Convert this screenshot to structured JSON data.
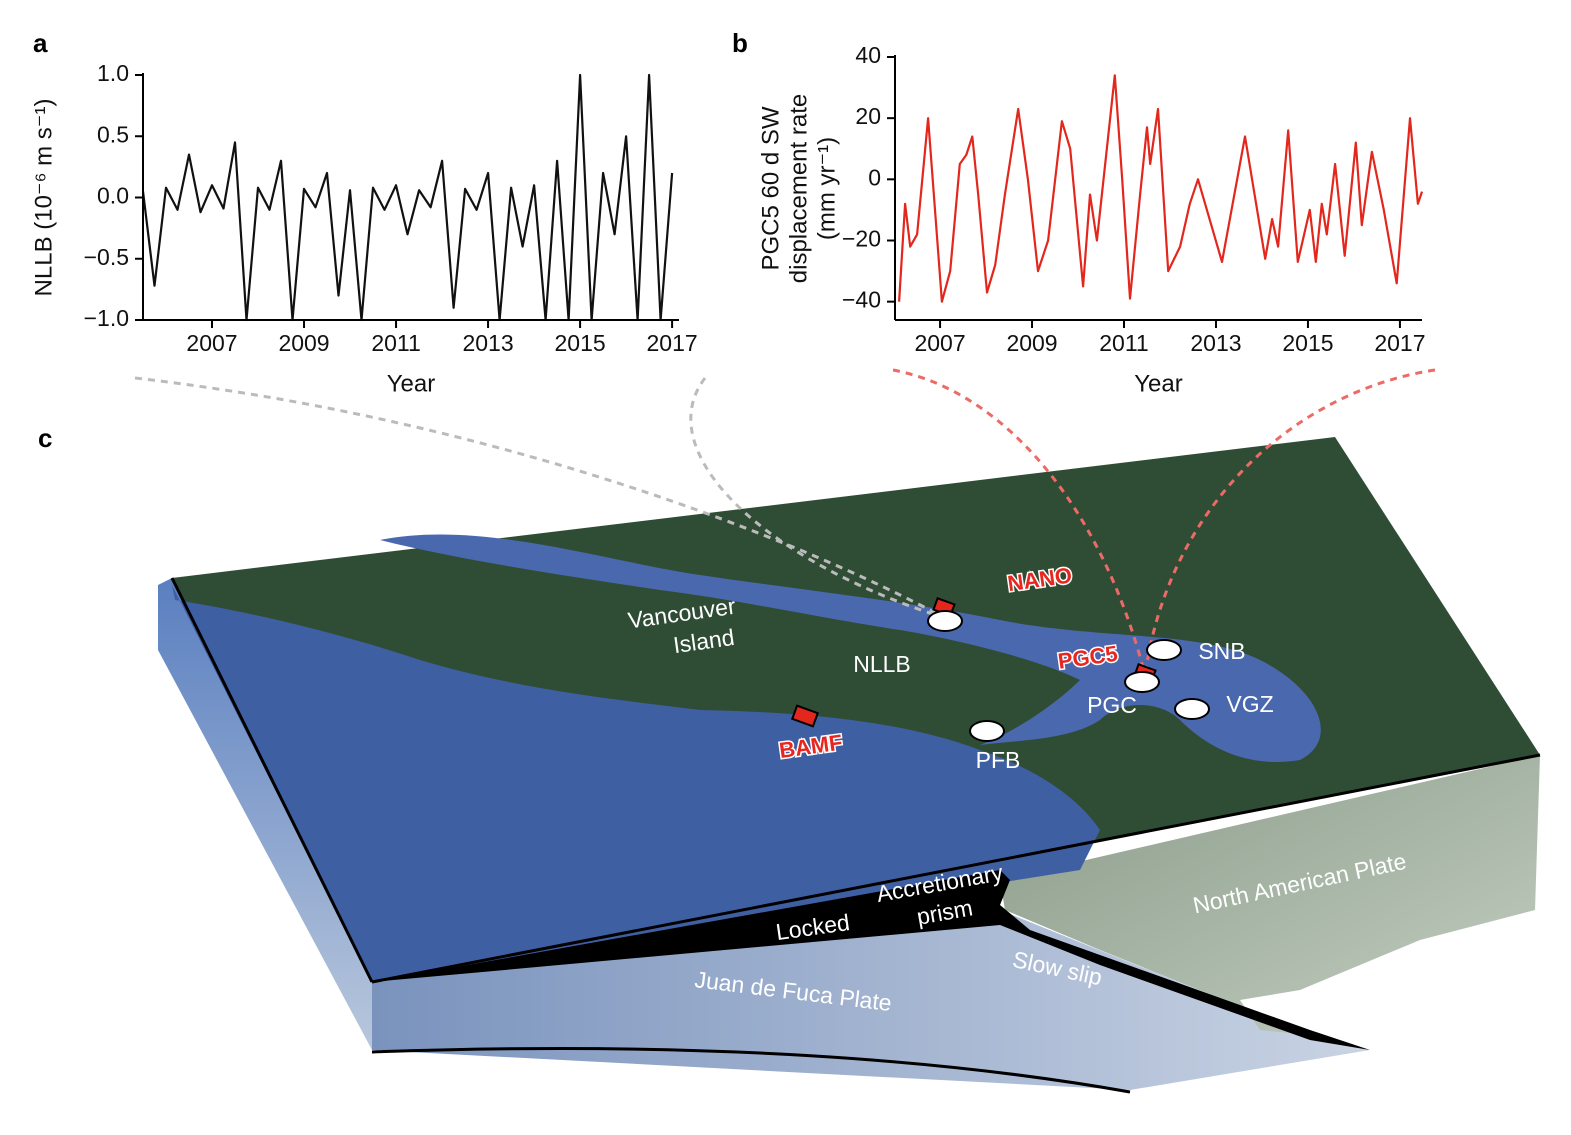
{
  "chart_data": [
    {
      "type": "line",
      "panel_label": "a",
      "ylabel": "NLLB (10⁻⁶ m s⁻¹)",
      "xlabel": "Year",
      "color": "#111111",
      "x": [
        2005.5,
        2005.75,
        2006,
        2006.25,
        2006.5,
        2006.75,
        2007,
        2007.25,
        2007.5,
        2007.75,
        2008,
        2008.25,
        2008.5,
        2008.75,
        2009,
        2009.25,
        2009.5,
        2009.75,
        2010,
        2010.25,
        2010.5,
        2010.75,
        2011,
        2011.25,
        2011.5,
        2011.75,
        2012,
        2012.25,
        2012.5,
        2012.75,
        2013,
        2013.25,
        2013.5,
        2013.75,
        2014,
        2014.25,
        2014.5,
        2014.75,
        2015,
        2015.25,
        2015.5,
        2015.75,
        2016,
        2016.25,
        2016.5,
        2016.75,
        2017
      ],
      "values": [
        0.05,
        -0.72,
        0.08,
        -0.1,
        0.35,
        -0.12,
        0.1,
        -0.09,
        0.45,
        -1,
        0.08,
        -0.1,
        0.3,
        -1,
        0.07,
        -0.08,
        0.2,
        -0.8,
        0.06,
        -1,
        0.08,
        -0.1,
        0.1,
        -0.3,
        0.06,
        -0.08,
        0.3,
        -0.9,
        0.07,
        -0.1,
        0.2,
        -1,
        0.08,
        -0.4,
        0.1,
        -1,
        0.3,
        -1,
        1,
        -1,
        0.2,
        -0.3,
        0.5,
        -1,
        1,
        -1,
        0.2
      ],
      "xlim": [
        2005.5,
        2017.15
      ],
      "xticks": [
        2007,
        2009,
        2011,
        2013,
        2015,
        2017
      ],
      "ylim": [
        -1,
        1
      ],
      "yticks": [
        {
          "value": -1,
          "label": "−1.0"
        },
        {
          "value": -0.5,
          "label": "−0.5"
        },
        {
          "value": 0,
          "label": "0.0"
        },
        0.5,
        {
          "value": 1,
          "label": "1.0"
        }
      ]
    },
    {
      "type": "line",
      "panel_label": "b",
      "ylabel": [
        "PGC5 60 d SW",
        "displacement rate",
        "(mm yr⁻¹)"
      ],
      "xlabel": "Year",
      "color": "#e3271c",
      "x": [
        2006.11,
        2006.24,
        2006.35,
        2006.5,
        2006.74,
        2006.89,
        2007.04,
        2007.22,
        2007.43,
        2007.57,
        2007.7,
        2007.83,
        2008.02,
        2008.2,
        2008.41,
        2008.7,
        2008.91,
        2009.13,
        2009.35,
        2009.65,
        2009.83,
        2010.11,
        2010.26,
        2010.41,
        2010.8,
        2010.96,
        2011.13,
        2011.35,
        2011.5,
        2011.57,
        2011.74,
        2011.96,
        2012.22,
        2012.43,
        2012.61,
        2013.13,
        2013.63,
        2014.07,
        2014.22,
        2014.35,
        2014.57,
        2014.78,
        2015.04,
        2015.17,
        2015.3,
        2015.41,
        2015.59,
        2015.8,
        2016.04,
        2016.17,
        2016.39,
        2016.65,
        2016.93,
        2017.22,
        2017.39,
        2017.48
      ],
      "values": [
        -40,
        -8,
        -22,
        -18,
        20,
        -10,
        -40,
        -30,
        5,
        8,
        14,
        -5,
        -37,
        -28,
        -5,
        23,
        0,
        -30,
        -20,
        19,
        10,
        -35,
        -5,
        -20,
        34,
        0,
        -39,
        -5,
        17,
        5,
        23,
        -30,
        -22,
        -8,
        0,
        -27,
        14,
        -26,
        -13,
        -22,
        16,
        -27,
        -10,
        -27,
        -8,
        -18,
        5,
        -25,
        12,
        -15,
        9,
        -10,
        -34,
        20,
        -8,
        -4
      ],
      "xlim": [
        2006.02,
        2017.48
      ],
      "xticks": [
        2007,
        2009,
        2011,
        2013,
        2015,
        2017
      ],
      "ylim": [
        -46,
        40
      ],
      "yticks": [
        {
          "value": -40,
          "label": "−40"
        },
        {
          "value": -20,
          "label": "−20"
        },
        0,
        20,
        40
      ]
    }
  ],
  "map": {
    "panel_label": "c",
    "vancouver_island": [
      "Vancouver",
      "Island"
    ],
    "stations_red": [
      "NANO",
      "PGC5",
      "BAMF"
    ],
    "stations": [
      "NLLB",
      "SNB",
      "PGC",
      "VGZ",
      "PFB"
    ],
    "accretionary_prism": [
      "Accretionary",
      "prism"
    ],
    "locked": "Locked",
    "slow_slip": "Slow slip",
    "north_american_plate": "North American Plate",
    "juan_de_fuca_plate": "Juan de Fuca Plate"
  }
}
